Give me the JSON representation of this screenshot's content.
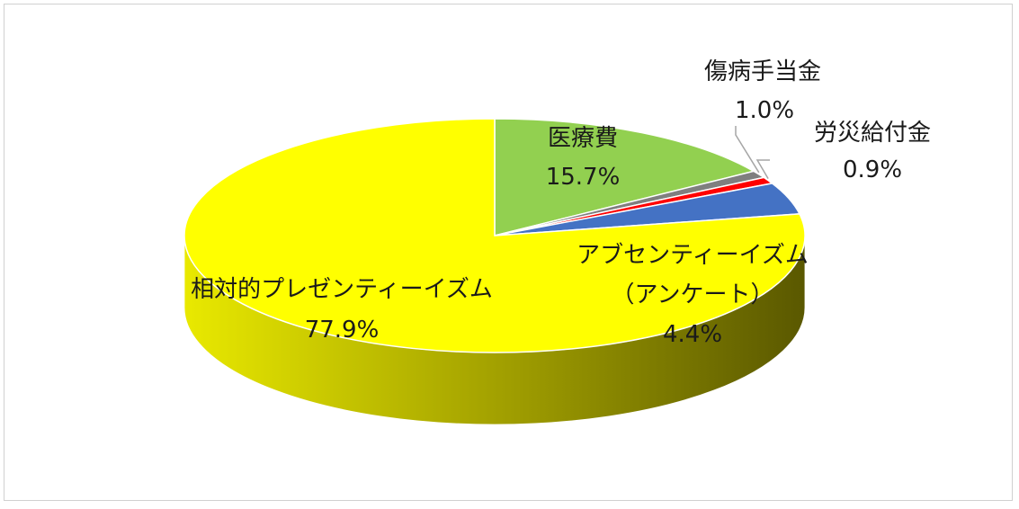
{
  "chart_data": {
    "type": "pie",
    "style": "3d",
    "title": "",
    "slices": [
      {
        "name": "医療費",
        "line2": "",
        "pct_label": "15.7%",
        "value": 15.7,
        "color": "#92d050",
        "side_color": "#6f9e3c"
      },
      {
        "name": "傷病手当金",
        "line2": "",
        "pct_label": "1.0%",
        "value": 1.0,
        "color": "#7f7f7f",
        "side_color": "#5a5a5a"
      },
      {
        "name": "労災給付金",
        "line2": "",
        "pct_label": "0.9%",
        "value": 0.9,
        "color": "#ff0000",
        "side_color": "#b00000"
      },
      {
        "name": "アブセンティーイズム",
        "line2": "（アンケート）",
        "pct_label": "4.4%",
        "value": 4.4,
        "color": "#4472c4",
        "side_color": "#2f5597"
      },
      {
        "name": "相対的プレゼンティーイズム",
        "line2": "",
        "pct_label": "77.9%",
        "value": 77.9,
        "color": "#ffff00",
        "side_color": "#c8c800"
      }
    ],
    "start_angle_deg": 0,
    "direction": "clockwise",
    "legend": "none",
    "data_labels": "category name and percentage"
  }
}
